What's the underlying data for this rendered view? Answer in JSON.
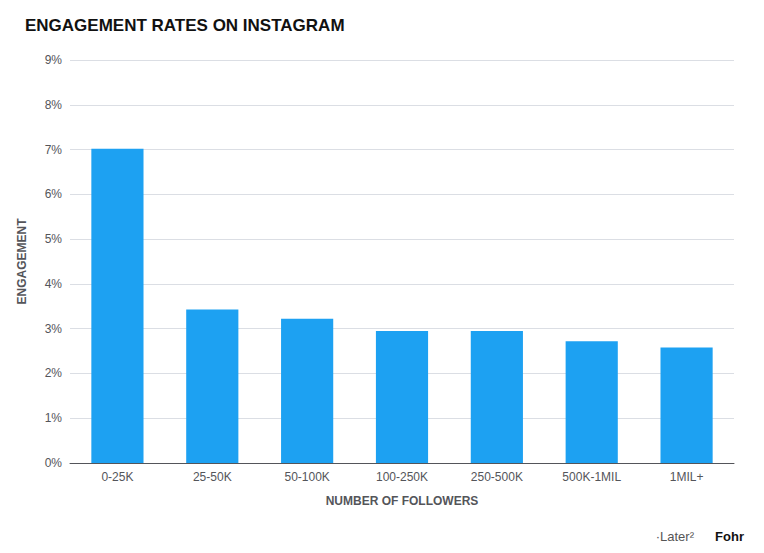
{
  "chart_data": {
    "type": "bar",
    "title": "ENGAGEMENT RATES ON INSTAGRAM",
    "categories": [
      "0-25K",
      "25-50K",
      "50-100K",
      "100-250K",
      "250-500K",
      "500K-1MIL",
      "1MIL+"
    ],
    "values": [
      7.02,
      3.43,
      3.22,
      2.95,
      2.95,
      2.72,
      2.58
    ],
    "color": "#1da1f2",
    "xlabel": "NUMBER OF FOLLOWERS",
    "ylabel": "ENGAGEMENT",
    "ylim": [
      0,
      9
    ],
    "yticks": [
      {
        "value": 0,
        "label": "0%"
      },
      {
        "value": 1,
        "label": "1%"
      },
      {
        "value": 2,
        "label": "2%"
      },
      {
        "value": 3,
        "label": "3%"
      },
      {
        "value": 4,
        "label": "4%"
      },
      {
        "value": 5,
        "label": "5%"
      },
      {
        "value": 6,
        "label": "6%"
      },
      {
        "value": 7,
        "label": "7%"
      },
      {
        "value": 8,
        "label": "8%"
      },
      {
        "value": 9,
        "label": "9%"
      }
    ],
    "grid": true,
    "annotations": [
      "·Later²",
      "Fohr"
    ]
  }
}
